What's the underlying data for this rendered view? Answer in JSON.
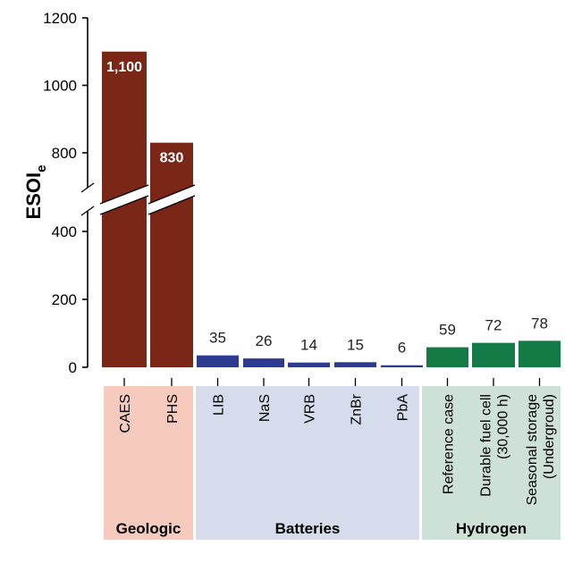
{
  "chart_data": {
    "type": "bar",
    "ylabel": "ESOI",
    "ylabel_sub": "e",
    "yticks": [
      0,
      200,
      400,
      800,
      1000,
      1200
    ],
    "ytick_labels": [
      "0",
      "200",
      "400",
      "800",
      "1000",
      "1200"
    ],
    "axis_break": [
      500,
      700
    ],
    "ylim": [
      0,
      1200
    ],
    "categories": [
      {
        "lines": [
          "CAES"
        ],
        "group": "geologic",
        "value": 1100,
        "label": "1,100"
      },
      {
        "lines": [
          "PHS"
        ],
        "group": "geologic",
        "value": 830,
        "label": "830"
      },
      {
        "lines": [
          "LIB"
        ],
        "group": "batteries",
        "value": 35,
        "label": "35"
      },
      {
        "lines": [
          "NaS"
        ],
        "group": "batteries",
        "value": 26,
        "label": "26"
      },
      {
        "lines": [
          "VRB"
        ],
        "group": "batteries",
        "value": 14,
        "label": "14"
      },
      {
        "lines": [
          "ZnBr"
        ],
        "group": "batteries",
        "value": 15,
        "label": "15"
      },
      {
        "lines": [
          "PbA"
        ],
        "group": "batteries",
        "value": 6,
        "label": "6"
      },
      {
        "lines": [
          "Reference case"
        ],
        "group": "hydrogen",
        "value": 59,
        "label": "59"
      },
      {
        "lines": [
          "Durable fuel cell",
          "(30,000 h)"
        ],
        "group": "hydrogen",
        "value": 72,
        "label": "72"
      },
      {
        "lines": [
          "Seasonal storage",
          "(Undergroud)"
        ],
        "group": "hydrogen",
        "value": 78,
        "label": "78"
      }
    ],
    "groups": [
      {
        "id": "geologic",
        "name": "Geologic",
        "bar_color": "#7a2718",
        "bg_color": "#f6cbbd"
      },
      {
        "id": "batteries",
        "name": "Batteries",
        "bar_color": "#2c3a8f",
        "bg_color": "#d6dceb"
      },
      {
        "id": "hydrogen",
        "name": "Hydrogen",
        "bar_color": "#137a45",
        "bg_color": "#cde1d6"
      }
    ]
  }
}
